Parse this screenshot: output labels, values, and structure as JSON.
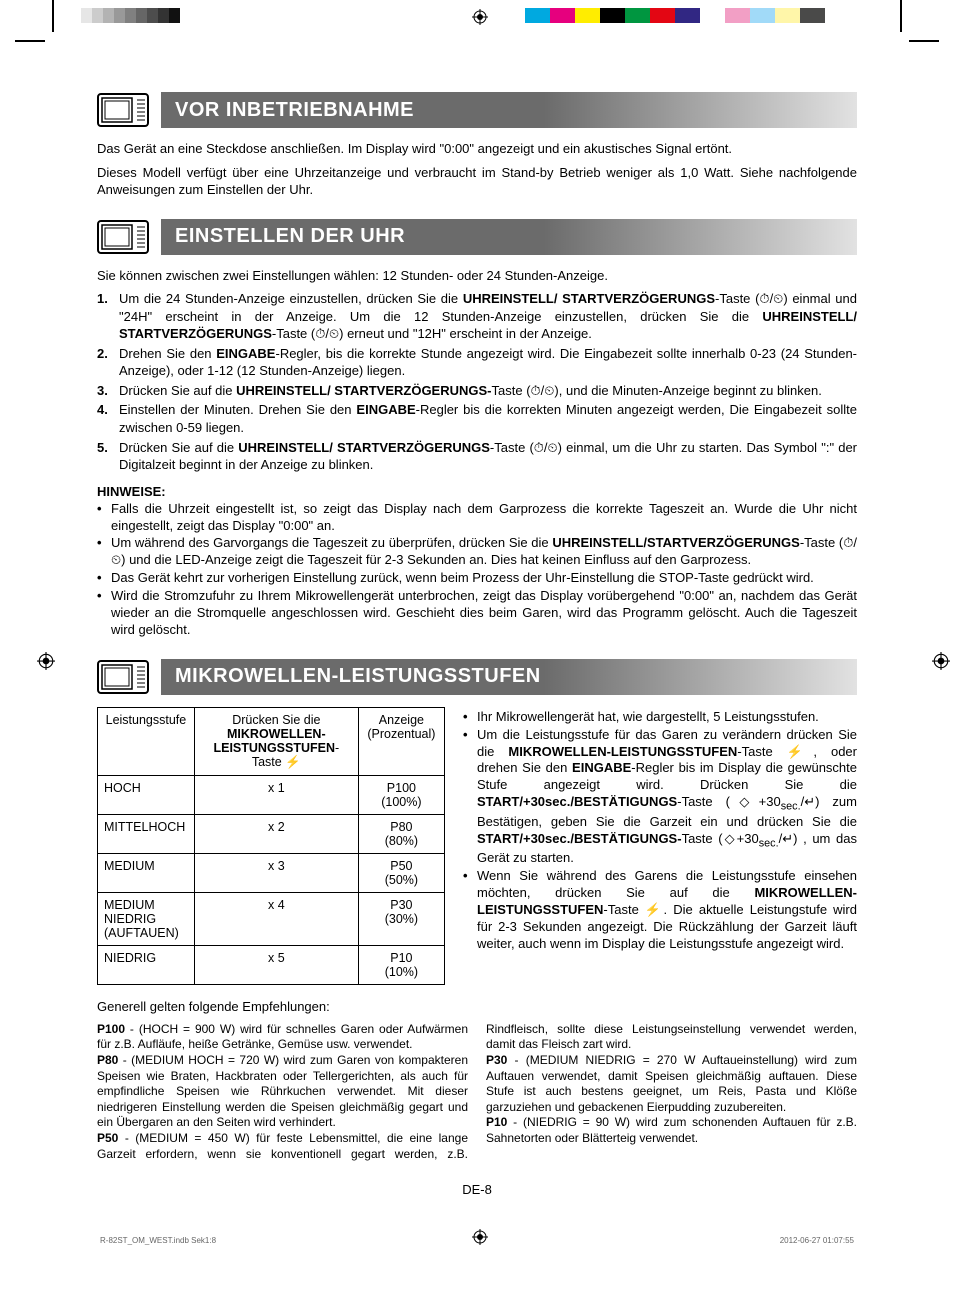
{
  "crop_swatches": [
    "#00a9e0",
    "#e6007e",
    "#ffed00",
    "#000000",
    "#009640",
    "#e30613",
    "#312783",
    "#ffffff",
    "#f29fc5",
    "#a1daf8",
    "#fff6a9",
    "#4a4a49"
  ],
  "sections": {
    "s1": {
      "title": "VOR INBETRIEBNAHME"
    },
    "s2": {
      "title": "EINSTELLEN DER UHR"
    },
    "s3": {
      "title": "MIKROWELLEN-LEISTUNGSSTUFEN"
    }
  },
  "p1": "Das Gerät an eine Steckdose anschließen. Im Display wird \"0:00\" angezeigt und ein akustisches Signal ertönt.",
  "p2": "Dieses Modell verfügt über eine Uhrzeitanzeige und verbraucht im Stand-by Betrieb weniger als 1,0 Watt. Siehe nachfolgende Anweisungen zum Einstellen der Uhr.",
  "intro2": "Sie können zwischen zwei Einstellungen wählen: 12 Stunden- oder 24 Stunden-Anzeige.",
  "steps": [
    "Um die 24 Stunden-Anzeige einzustellen, drücken Sie die <b>UHREINSTELL/ STARTVERZÖGERUNGS</b>-Taste (⏱/⏲) einmal und \"24H\" erscheint in der Anzeige. Um die 12 Stunden-Anzeige einzustellen, drücken Sie die <b>UHREINSTELL/ STARTVERZÖGERUNGS</b>-Taste (⏱/⏲) erneut und \"12H\" erscheint in der Anzeige.",
    "Drehen Sie den <b>EINGABE</b>-Regler, bis die korrekte Stunde angezeigt wird. Die Eingabezeit sollte innerhalb 0-23 (24 Stunden-Anzeige), oder 1-12 (12 Stunden-Anzeige) liegen.",
    "Drücken Sie auf die <b>UHREINSTELL/ STARTVERZÖGERUNGS-</b>Taste (⏱/⏲), und die Minuten-Anzeige beginnt zu blinken.",
    "Einstellen der Minuten. Drehen Sie den <b>EINGABE</b>-Regler bis die korrekten Minuten angezeigt werden, Die Eingabezeit sollte zwischen 0-59 liegen.",
    "Drücken Sie auf die <b>UHREINSTELL/ STARTVERZÖGERUNGS</b>-Taste (⏱/⏲) einmal, um die Uhr zu starten. Das Symbol \":\" der Digitalzeit beginnt in der Anzeige zu blinken."
  ],
  "hinweise_label": "HINWEISE:",
  "hinweise": [
    "Falls die Uhrzeit eingestellt ist, so zeigt das Display nach dem Garprozess die korrekte Tageszeit an. Wurde die Uhr nicht eingestellt, zeigt das Display \"0:00\" an.",
    "Um während des Garvorgangs die Tageszeit zu überprüfen, drücken Sie die <b>UHREINSTELL/STARTVERZÖGERUNGS</b>-Taste (⏱/⏲) und die LED-Anzeige zeigt die Tageszeit für 2-3 Sekunden an. Dies hat keinen Einfluss auf den Garprozess.",
    "Das Gerät kehrt zur vorherigen Einstellung zurück, wenn beim Prozess der Uhr-Einstellung die STOP-Taste gedrückt wird.",
    "Wird die Stromzufuhr zu Ihrem Mikrowellengerät unterbrochen, zeigt das Display vorübergehend \"0:00\" an, nachdem das Gerät wieder an die Stromquelle angeschlossen wird. Geschieht dies beim Garen, wird das Programm gelöscht. Auch die Tageszeit wird gelöscht."
  ],
  "table": {
    "headers": [
      "Leistungsstufe",
      "Drücken Sie die <b>MIKROWELLEN-LEISTUNGSSTUFEN</b>-Taste ⚡",
      "Anzeige (Prozentual)"
    ],
    "rows": [
      [
        "HOCH",
        "x 1",
        "P100 (100%)"
      ],
      [
        "MITTELHOCH",
        "x 2",
        "P80 (80%)"
      ],
      [
        "MEDIUM",
        "x 3",
        "P50 (50%)"
      ],
      [
        "MEDIUM NIEDRIG (AUFTAUEN)",
        "x 4",
        "P30 (30%)"
      ],
      [
        "NIEDRIG",
        "x 5",
        "P10 (10%)"
      ]
    ]
  },
  "right_bullets": [
    "Ihr Mikrowellengerät hat, wie dargestellt, 5 Leistungsstufen.",
    "Um die Leistungsstufe für das Garen zu verändern drücken Sie die <b>MIKROWELLEN-LEISTUNGSSTUFEN</b>-Taste ⚡, oder drehen Sie den <b>EINGABE</b>-Regler bis im Display die gewünschte Stufe angezeigt wird. Drücken Sie die <b>START/+30sec./BESTÄTIGUNGS</b>-Taste (◇+30<sub>sec.</sub>/↵) zum Bestätigen, geben Sie die Garzeit ein und drücken Sie die <b>START/+30sec./BESTÄTIGUNGS-</b>Taste (◇+30<sub>sec.</sub>/↵) , um das Gerät zu starten.",
    "Wenn Sie während des Garens die Leistungsstufe einsehen möchten, drücken Sie auf die <b>MIKROWELLEN-LEISTUNGSSTUFEN</b>-Taste ⚡. Die aktuelle Leistungstufe wird für 2-3 Sekunden angezeigt. Die Rückzählung der Garzeit läuft weiter, auch wenn im Display die Leistungsstufe angezeigt wird."
  ],
  "recs_title": "Generell gelten folgende Empfehlungen:",
  "recs_body": "<b>P100</b> - (HOCH = 900 W) wird für schnelles Garen oder Aufwärmen für z.B. Aufläufe, heiße Getränke, Gemüse usw. verwendet.<br><b>P80</b> - (MEDIUM HOCH = 720 W) wird zum Garen von kompakteren Speisen wie Braten, Hackbraten oder Tellergerichten, als auch für empfindliche Speisen wie Rührkuchen verwendet. Mit dieser niedrigeren Einstellung werden die Speisen gleichmäßig gegart und ein Übergaren an den Seiten wird verhindert.<br><b>P50</b> - (MEDIUM = 450 W) für feste Lebensmittel, die eine lange Garzeit erfordern, wenn sie konventionell gegart werden, z.B. Rindfleisch, sollte diese Leistungseinstellung verwendet werden, damit das Fleisch zart wird.<br><b>P30</b> - (MEDIUM NIEDRIG = 270 W Auftaueinstellung) wird zum Auftauen verwendet, damit Speisen gleichmäßig auftauen. Diese Stufe ist auch bestens geeignet, um Reis, Pasta und Klöße garzuziehen und gebackenen Eierpudding zuzubereiten.<br><b>P10</b> - (NIEDRIG = 90 W) wird zum schonenden Auftauen für z.B. Sahnetorten oder Blätterteig verwendet.",
  "page_num": "DE-8",
  "footer": {
    "left": "R-82ST_OM_WEST.indb   Sek1:8",
    "right": "2012-06-27   01:07:55"
  }
}
